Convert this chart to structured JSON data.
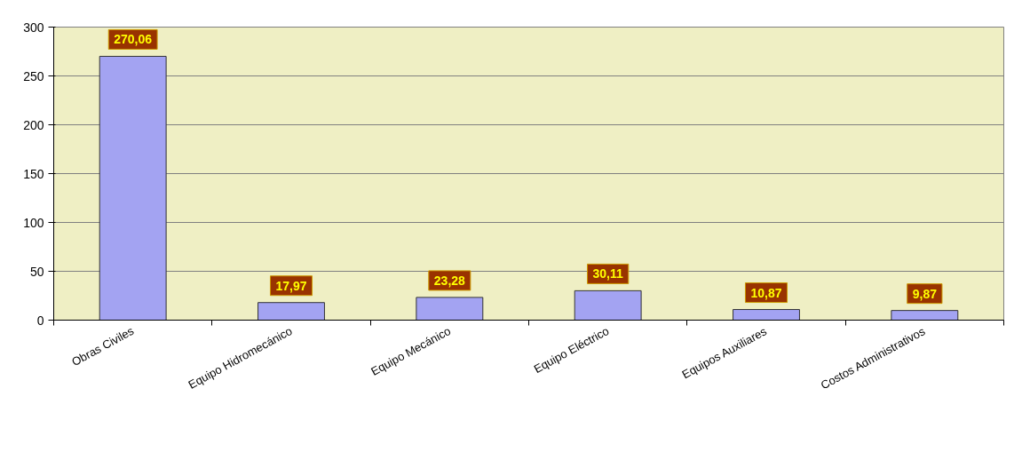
{
  "chart_data": {
    "type": "bar",
    "categories": [
      "Obras Civiles",
      "Equipo Hidromecánico",
      "Equipo Mecánico",
      "Equipo Eléctrico",
      "Equipos Auxiliares",
      "Costos Administrativos"
    ],
    "values": [
      270.06,
      17.97,
      23.28,
      30.11,
      10.87,
      9.87
    ],
    "value_labels": [
      "270,06",
      "17,97",
      "23,28",
      "30,11",
      "10,87",
      "9,87"
    ],
    "color": "#a3a3f2",
    "ylim": [
      0,
      300
    ],
    "yticks": [
      0,
      50,
      100,
      150,
      200,
      250,
      300
    ],
    "grid": "y"
  }
}
